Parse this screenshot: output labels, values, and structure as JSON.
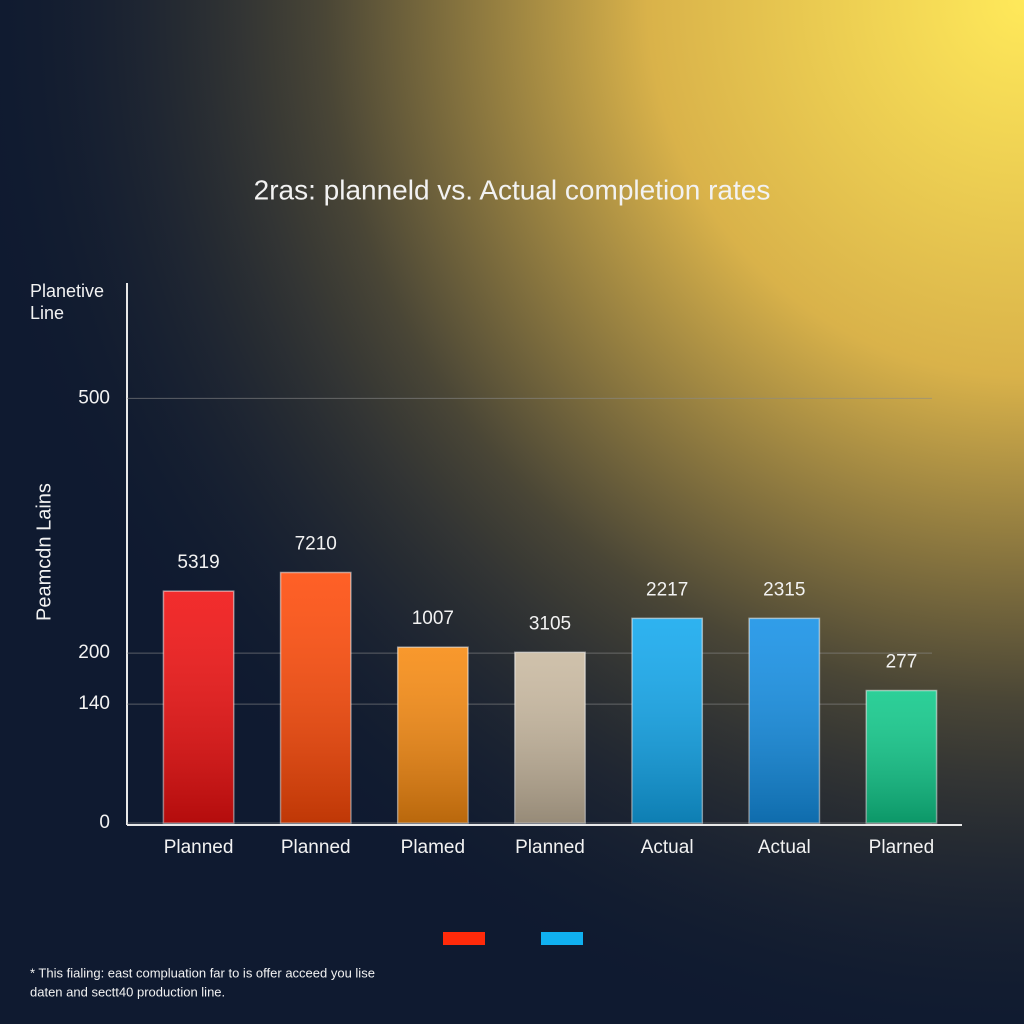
{
  "chart_data": {
    "type": "bar",
    "title": "2ras: planneld vs. Actual completion rates",
    "y_label_top": [
      "Planetive",
      "Line"
    ],
    "y_label": "Peamcdn Lains",
    "categories": [
      "Planned",
      "Planned",
      "Plamed",
      "Planned",
      "Actual",
      "Actual",
      "Plarned"
    ],
    "values": [
      273,
      295,
      207,
      201,
      241,
      241,
      156
    ],
    "annotations": [
      "5319",
      "7210",
      "1007",
      "3105",
      "2217",
      "2315",
      "277"
    ],
    "colors": [
      "#f01010",
      "#ff4a08",
      "#f78a10",
      "#c9b9a0",
      "#12a8ee",
      "#1490e6",
      "#10c98a"
    ],
    "ylim": [
      0,
      630
    ],
    "yticks": [
      0,
      140,
      200,
      500
    ],
    "grid": true,
    "legend_colors": [
      "#ff2a0a",
      "#10b0f0"
    ],
    "footnote": [
      "* This fialing: east compluation far to is offer acceed you lise",
      "daten and sectt40 production line."
    ]
  }
}
